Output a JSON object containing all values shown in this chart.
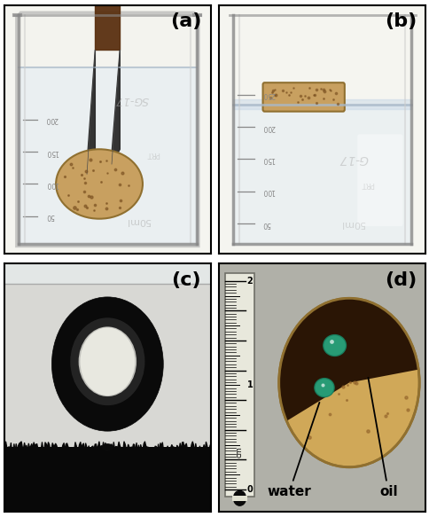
{
  "figsize": [
    4.85,
    5.83
  ],
  "dpi": 100,
  "panel_labels": [
    "(a)",
    "(b)",
    "(c)",
    "(d)"
  ],
  "label_fontsize": 16,
  "label_fontweight": "bold",
  "label_color": "black",
  "annotation_d": {
    "water_text": "water",
    "oil_text": "oil",
    "fontsize": 11,
    "fontweight": "bold",
    "text_color": "black"
  },
  "hspace": 0.04,
  "wspace": 0.04,
  "panel_a_bg": "#e8e8e2",
  "panel_b_bg": "#e8e8e2",
  "panel_c_bg": "#d0d0cc",
  "panel_d_bg": "#b8b8b0",
  "beaker_color": "#f0f0f0",
  "beaker_edge": "#aaaaaa",
  "water_color": "#dce8f0",
  "foam_tan": "#c8a060",
  "foam_dark": "#3a2008",
  "tweezers_color": "#1a1a1a",
  "droplet_teal": "#30b090",
  "ruler_bg": "#e8e8dc"
}
